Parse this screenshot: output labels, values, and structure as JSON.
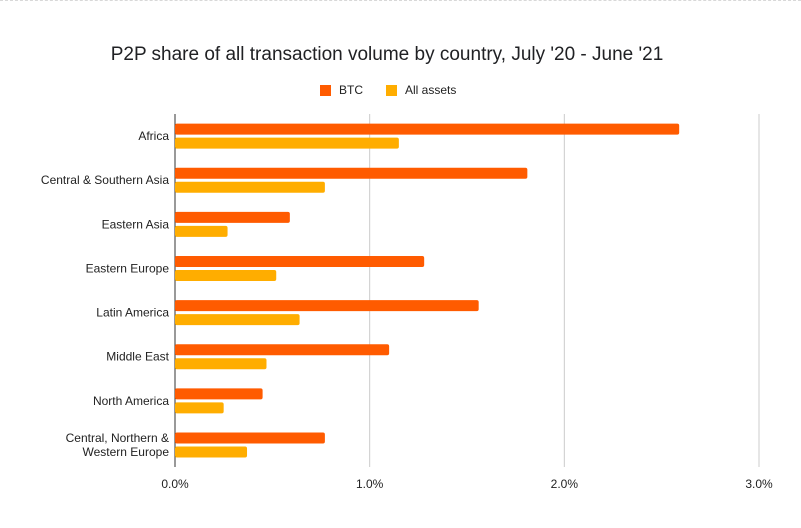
{
  "chart_data": {
    "type": "bar",
    "orientation": "horizontal",
    "title": "P2P share of all transaction volume by country, July '20 - June '21",
    "categories": [
      "Africa",
      "Central & Southern Asia",
      "Eastern Asia",
      "Eastern Europe",
      "Latin America",
      "Middle East",
      "North America",
      "Central, Northern & Western Europe"
    ],
    "category_lines": [
      [
        "Africa"
      ],
      [
        "Central & Southern Asia"
      ],
      [
        "Eastern Asia"
      ],
      [
        "Eastern Europe"
      ],
      [
        "Latin America"
      ],
      [
        "Middle East"
      ],
      [
        "North America"
      ],
      [
        "Central, Northern &",
        "Western Europe"
      ]
    ],
    "series": [
      {
        "name": "BTC",
        "color": "#ff5b00",
        "values": [
          2.59,
          1.81,
          0.59,
          1.28,
          1.56,
          1.1,
          0.45,
          0.77
        ]
      },
      {
        "name": "All assets",
        "color": "#ffad00",
        "values": [
          1.15,
          0.77,
          0.27,
          0.52,
          0.64,
          0.47,
          0.25,
          0.37
        ]
      }
    ],
    "xlim": [
      0,
      3
    ],
    "xticks": [
      "0.0%",
      "1.0%",
      "2.0%",
      "3.0%"
    ],
    "xlabel": "",
    "ylabel": "",
    "grid": true,
    "legend_position": "top-center"
  }
}
